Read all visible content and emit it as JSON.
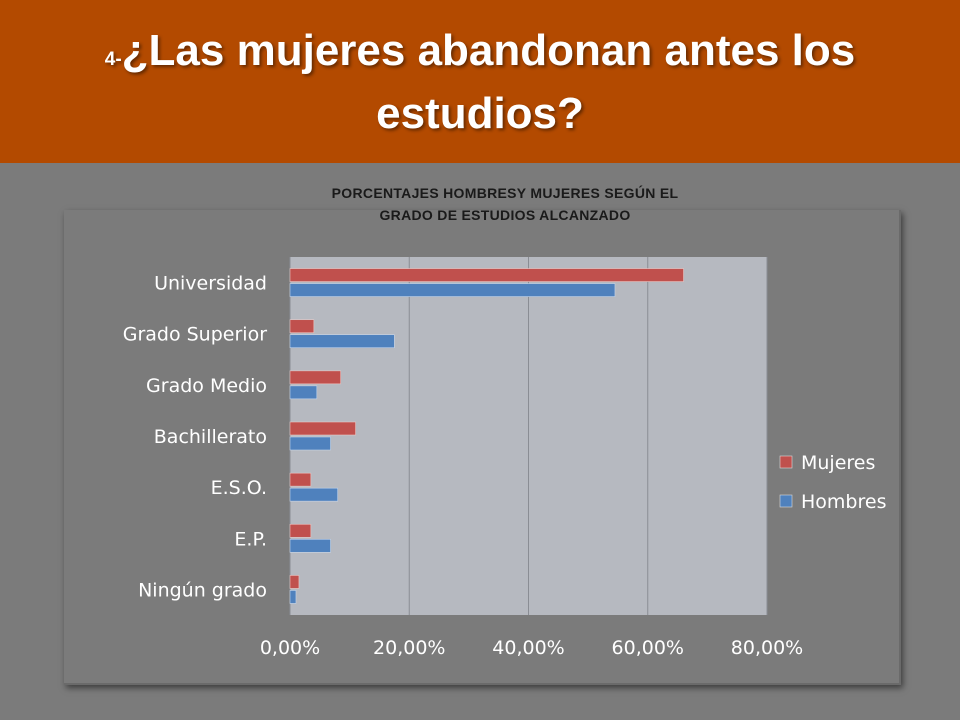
{
  "header": {
    "prefix": "4-",
    "line1": "¿Las mujeres abandonan antes los",
    "line2": "estudios?"
  },
  "colors": {
    "banner": "#b34a00",
    "background": "#7b7b7b",
    "plot_area": "#b6b9c0",
    "mujeres": "#c0504d",
    "hombres": "#4f81bd"
  },
  "chart_data": {
    "type": "bar",
    "orientation": "horizontal",
    "title_line1": "PORCENTAJES HOMBRESY MUJERES SEGÚN EL",
    "title_line2": "GRADO DE ESTUDIOS ALCANZADO",
    "categories": [
      "Universidad",
      "Grado Superior",
      "Grado Medio",
      "Bachillerato",
      "E.S.O.",
      "E.P.",
      "Ningún grado"
    ],
    "series": [
      {
        "name": "Mujeres",
        "values": [
          66.0,
          4.0,
          8.5,
          11.0,
          3.5,
          3.5,
          1.5
        ]
      },
      {
        "name": "Hombres",
        "values": [
          54.5,
          17.5,
          4.5,
          6.8,
          8.0,
          6.8,
          1.0
        ]
      }
    ],
    "xlim": [
      0,
      80
    ],
    "xticks": [
      "0,00%",
      "20,00%",
      "40,00%",
      "60,00%",
      "80,00%"
    ],
    "grid": true,
    "legend_position": "right"
  }
}
